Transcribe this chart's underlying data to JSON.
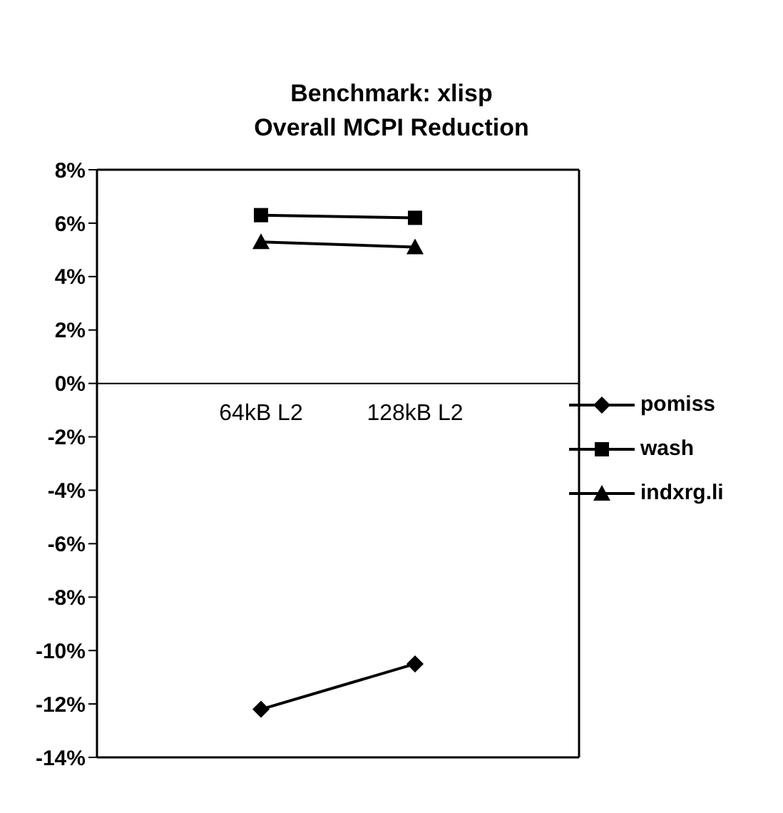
{
  "chart_data": {
    "type": "line",
    "title": "Benchmark: xlisp",
    "subtitle": "Overall MCPI Reduction",
    "categories": [
      "64kB L2",
      "128kB L2"
    ],
    "series": [
      {
        "name": "pomiss",
        "color": "#000000",
        "marker": "diamond",
        "values": [
          -12.2,
          -10.5
        ]
      },
      {
        "name": "wash",
        "color": "#000000",
        "marker": "square",
        "values": [
          6.3,
          6.2
        ]
      },
      {
        "name": "indxrg.li",
        "color": "#000000",
        "marker": "triangle",
        "values": [
          5.3,
          5.1
        ]
      }
    ],
    "ylim": [
      -14,
      8
    ],
    "yticks": [
      {
        "value": -14,
        "label": "-14%"
      },
      {
        "value": -12,
        "label": "-12%"
      },
      {
        "value": -10,
        "label": "-10%"
      },
      {
        "value": -8,
        "label": "-8%"
      },
      {
        "value": -6,
        "label": "-6%"
      },
      {
        "value": -4,
        "label": "-4%"
      },
      {
        "value": -2,
        "label": "-2%"
      },
      {
        "value": 0,
        "label": "0%"
      },
      {
        "value": 2,
        "label": "2%"
      },
      {
        "value": 4,
        "label": "4%"
      },
      {
        "value": 6,
        "label": "6%"
      },
      {
        "value": 8,
        "label": "8%"
      }
    ],
    "legend": "right",
    "line_style": "solid"
  }
}
